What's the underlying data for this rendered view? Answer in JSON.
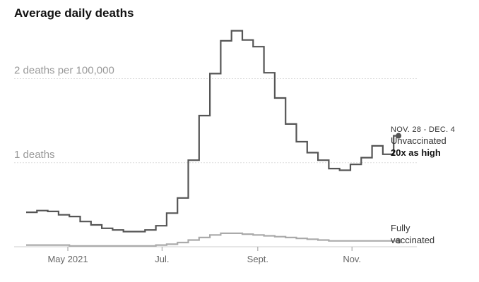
{
  "chart_data": {
    "type": "line",
    "title": "Average daily deaths",
    "y_ticks": [
      {
        "value": 1,
        "label": "1 deaths"
      },
      {
        "value": 2,
        "label": "2 deaths per 100,000"
      }
    ],
    "x_ticks": [
      {
        "x": "2021-05-01",
        "label": "May 2021"
      },
      {
        "x": "2021-07-01",
        "label": "Jul."
      },
      {
        "x": "2021-09-01",
        "label": "Sept."
      },
      {
        "x": "2021-11-01",
        "label": "Nov."
      }
    ],
    "xlim": [
      "2021-04-04",
      "2021-12-13"
    ],
    "ylim": [
      0,
      2.6
    ],
    "grid": true,
    "step": true,
    "series": [
      {
        "name": "Unvaccinated",
        "color": "#555555",
        "x": [
          "2021-04-04",
          "2021-04-11",
          "2021-04-18",
          "2021-04-25",
          "2021-05-02",
          "2021-05-09",
          "2021-05-16",
          "2021-05-23",
          "2021-05-30",
          "2021-06-06",
          "2021-06-13",
          "2021-06-20",
          "2021-06-27",
          "2021-07-04",
          "2021-07-11",
          "2021-07-18",
          "2021-07-25",
          "2021-08-01",
          "2021-08-08",
          "2021-08-15",
          "2021-08-22",
          "2021-08-29",
          "2021-09-05",
          "2021-09-12",
          "2021-09-19",
          "2021-09-26",
          "2021-10-03",
          "2021-10-10",
          "2021-10-17",
          "2021-10-24",
          "2021-10-31",
          "2021-11-07",
          "2021-11-14",
          "2021-11-21",
          "2021-11-28"
        ],
        "values": [
          0.41,
          0.43,
          0.42,
          0.38,
          0.36,
          0.3,
          0.26,
          0.22,
          0.2,
          0.18,
          0.18,
          0.2,
          0.25,
          0.4,
          0.58,
          1.03,
          1.56,
          2.06,
          2.45,
          2.57,
          2.46,
          2.38,
          2.07,
          1.77,
          1.46,
          1.25,
          1.12,
          1.03,
          0.93,
          0.91,
          0.98,
          1.06,
          1.2,
          1.1,
          1.32
        ]
      },
      {
        "name": "Fully vaccinated",
        "color": "#aaaaaa",
        "x": [
          "2021-04-04",
          "2021-04-11",
          "2021-04-18",
          "2021-04-25",
          "2021-05-02",
          "2021-05-09",
          "2021-05-16",
          "2021-05-23",
          "2021-05-30",
          "2021-06-06",
          "2021-06-13",
          "2021-06-20",
          "2021-06-27",
          "2021-07-04",
          "2021-07-11",
          "2021-07-18",
          "2021-07-25",
          "2021-08-01",
          "2021-08-08",
          "2021-08-15",
          "2021-08-22",
          "2021-08-29",
          "2021-09-05",
          "2021-09-12",
          "2021-09-19",
          "2021-09-26",
          "2021-10-03",
          "2021-10-10",
          "2021-10-17",
          "2021-10-24",
          "2021-10-31",
          "2021-11-07",
          "2021-11-14",
          "2021-11-21",
          "2021-11-28"
        ],
        "values": [
          0.02,
          0.02,
          0.02,
          0.02,
          0.01,
          0.01,
          0.01,
          0.01,
          0.01,
          0.01,
          0.01,
          0.01,
          0.02,
          0.03,
          0.05,
          0.08,
          0.11,
          0.14,
          0.16,
          0.16,
          0.15,
          0.14,
          0.13,
          0.12,
          0.11,
          0.1,
          0.09,
          0.08,
          0.07,
          0.07,
          0.07,
          0.07,
          0.07,
          0.07,
          0.07
        ]
      }
    ],
    "annotations": {
      "unvaccinated": {
        "date_range": "NOV. 28 - DEC. 4",
        "label": "Unvaccinated",
        "note": "20x as high"
      },
      "vaccinated": {
        "line1": "Fully",
        "line2": "vaccinated"
      }
    }
  }
}
